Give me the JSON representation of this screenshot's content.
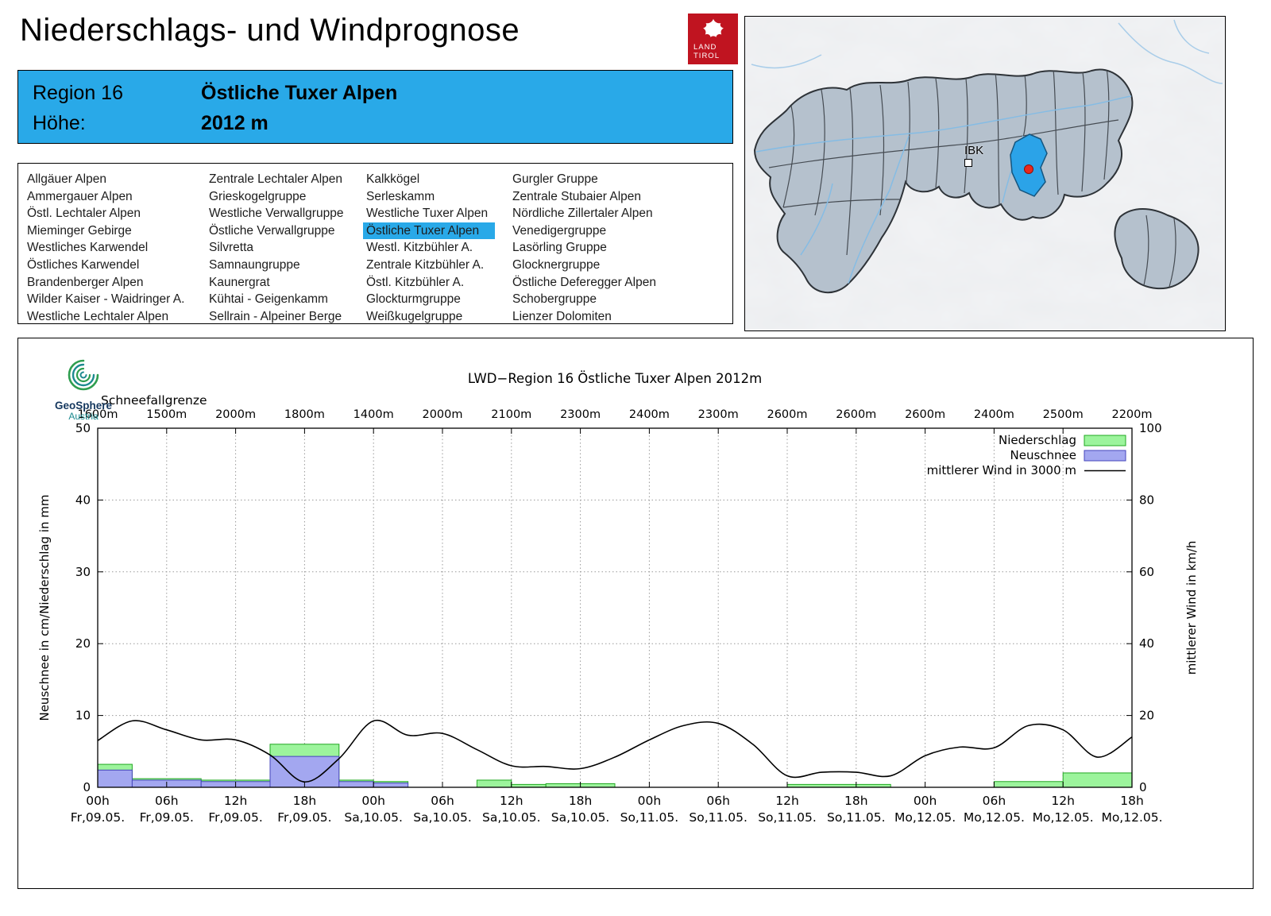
{
  "header": {
    "title": "Niederschlags- und Windprognose",
    "logo": {
      "line1": "LAND",
      "line2": "TIROL"
    }
  },
  "region_info": {
    "region_label": "Region 16",
    "region_name": "Östliche Tuxer Alpen",
    "altitude_label": "Höhe:",
    "altitude_value": "2012 m"
  },
  "region_list": {
    "selected": "Östliche Tuxer Alpen",
    "columns": [
      [
        "Allgäuer Alpen",
        "Ammergauer Alpen",
        "Östl. Lechtaler Alpen",
        "Mieminger Gebirge",
        "Westliches Karwendel",
        "Östliches Karwendel",
        "Brandenberger Alpen",
        "Wilder Kaiser - Waidringer A.",
        "Westliche Lechtaler Alpen"
      ],
      [
        "Zentrale Lechtaler Alpen",
        "Grieskogelgruppe",
        "Westliche Verwallgruppe",
        "Östliche Verwallgruppe",
        "Silvretta",
        "Samnaungruppe",
        "Kaunergrat",
        "Kühtai - Geigenkamm",
        "Sellrain - Alpeiner Berge"
      ],
      [
        "Kalkkögel",
        "Serleskamm",
        "Westliche Tuxer Alpen",
        "Östliche Tuxer Alpen",
        "Westl. Kitzbühler A.",
        "Zentrale Kitzbühler A.",
        "Östl. Kitzbühler A.",
        "Glockturmgruppe",
        "Weißkugelgruppe"
      ],
      [
        "Gurgler Gruppe",
        "Zentrale Stubaier Alpen",
        "Nördliche Zillertaler Alpen",
        "Venedigergruppe",
        "Lasörling Gruppe",
        "Glocknergruppe",
        "Östliche Deferegger Alpen",
        "Schobergruppe",
        "Lienzer Dolomiten"
      ]
    ]
  },
  "map": {
    "city_label": "IBK"
  },
  "branding": {
    "geosphere": "GeoSphere",
    "austria": "Austria"
  },
  "chart_data": {
    "type": "mixed",
    "title": "LWD−Region 16 Östliche Tuxer Alpen 2012m",
    "snowline_label": "Schneefallgrenze",
    "snowline_values": [
      "1600m",
      "1500m",
      "2000m",
      "1800m",
      "1400m",
      "2000m",
      "2100m",
      "2300m",
      "2400m",
      "2300m",
      "2600m",
      "2600m",
      "2600m",
      "2400m",
      "2500m",
      "2200m"
    ],
    "ylabel_left": "Neuschnee in cm/Niederschlag in mm",
    "ylabel_right": "mittlerer Wind in km/h",
    "ylim_left": [
      0,
      50
    ],
    "ylim_right": [
      0,
      100
    ],
    "hours_total": 90,
    "bar_hours": 3,
    "x_ticks": [
      {
        "hour": "00h",
        "date": "Fr,09.05."
      },
      {
        "hour": "06h",
        "date": "Fr,09.05."
      },
      {
        "hour": "12h",
        "date": "Fr,09.05."
      },
      {
        "hour": "18h",
        "date": "Fr,09.05."
      },
      {
        "hour": "00h",
        "date": "Sa,10.05."
      },
      {
        "hour": "06h",
        "date": "Sa,10.05."
      },
      {
        "hour": "12h",
        "date": "Sa,10.05."
      },
      {
        "hour": "18h",
        "date": "Sa,10.05."
      },
      {
        "hour": "00h",
        "date": "So,11.05."
      },
      {
        "hour": "06h",
        "date": "So,11.05."
      },
      {
        "hour": "12h",
        "date": "So,11.05."
      },
      {
        "hour": "18h",
        "date": "So,11.05."
      },
      {
        "hour": "00h",
        "date": "Mo,12.05."
      },
      {
        "hour": "06h",
        "date": "Mo,12.05."
      },
      {
        "hour": "12h",
        "date": "Mo,12.05."
      },
      {
        "hour": "18h",
        "date": "Mo,12.05."
      }
    ],
    "legend_labels": [
      "Niederschlag",
      "Neuschnee",
      "mittlerer Wind in 3000 m"
    ],
    "styles": {
      "niederschlag": {
        "fill": "#9cf49c",
        "stroke": "#22a822"
      },
      "neuschnee": {
        "fill": "#a3a7f0",
        "stroke": "#4646bb"
      },
      "wind": {
        "stroke": "#000000"
      }
    },
    "bars": {
      "niederschlag": [
        3.2,
        1.2,
        1.2,
        1.0,
        1.0,
        6.0,
        6.0,
        1.0,
        0.8,
        0,
        0,
        1.0,
        0.4,
        0.5,
        0.5,
        0,
        0,
        0,
        0,
        0,
        0.4,
        0.4,
        0.4,
        0,
        0,
        0,
        0.8,
        0.8,
        2.0,
        2.0
      ],
      "neuschnee": [
        2.4,
        1.0,
        1.0,
        0.8,
        0.8,
        4.3,
        4.3,
        0.8,
        0.6,
        0,
        0,
        0,
        0,
        0,
        0,
        0,
        0,
        0,
        0,
        0,
        0,
        0,
        0,
        0,
        0,
        0,
        0,
        0,
        0,
        0
      ]
    },
    "wind": {
      "x_hours": [
        0,
        3,
        6,
        9,
        12,
        15,
        18,
        21,
        24,
        27,
        30,
        33,
        36,
        39,
        42,
        45,
        48,
        51,
        54,
        57,
        60,
        63,
        66,
        69,
        72,
        75,
        78,
        81,
        84,
        87,
        90
      ],
      "values_kmh": [
        13,
        18.5,
        16,
        13.2,
        13.2,
        9,
        1.5,
        8,
        18.5,
        14.5,
        15,
        10.5,
        6,
        5.8,
        5.2,
        8.4,
        13.2,
        17.2,
        17.8,
        12,
        3.2,
        4.2,
        4.2,
        3.2,
        8.8,
        11.2,
        11,
        17.2,
        16,
        8.4,
        14
      ]
    }
  }
}
